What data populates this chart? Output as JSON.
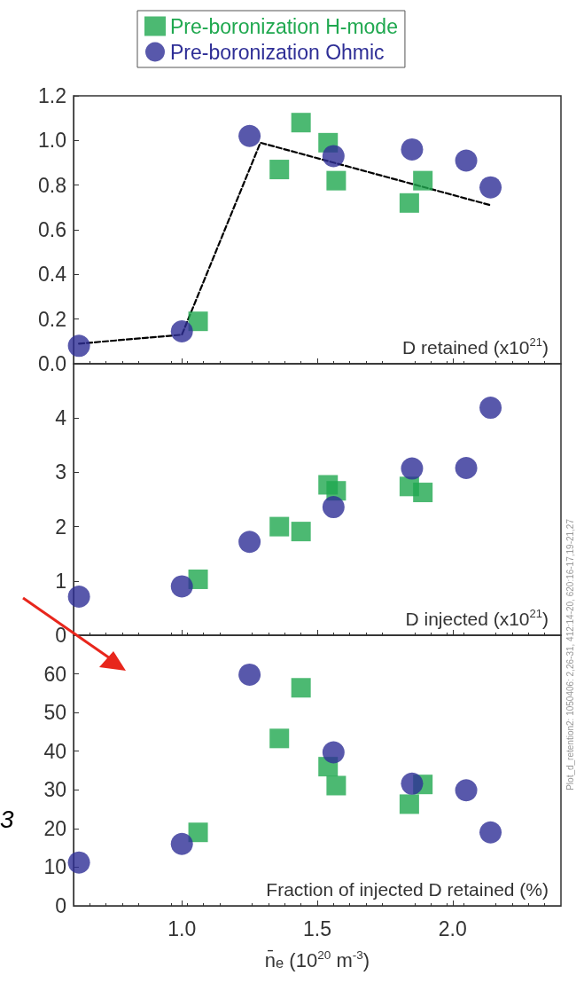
{
  "chart_data": [
    {
      "type": "scatter",
      "legend": "top",
      "tick_labels": "y",
      "grid": false,
      "annotations": [
        "D retained (x10$^{21}$)"
      ],
      "xlim": [
        0.6,
        2.4
      ],
      "xticks": [
        {
          "value": 1,
          "label": null
        },
        {
          "value": 1.5,
          "label": null
        },
        {
          "value": 2,
          "label": null
        }
      ],
      "ylim": [
        0,
        1.2
      ],
      "yticks": [
        {
          "value": 0,
          "label": "0.0"
        },
        0.2,
        0.4,
        0.6,
        0.8,
        {
          "value": 1,
          "label": "1.0"
        },
        1.2
      ],
      "series": [
        {
          "name": "Pre-boronization H-mode",
          "color": "#1fa84f",
          "marker": "square",
          "x": [
            1.06,
            1.36,
            1.44,
            1.54,
            1.57,
            1.84,
            1.89
          ],
          "values": [
            0.19,
            0.87,
            1.08,
            0.99,
            0.82,
            0.72,
            0.82
          ]
        },
        {
          "name": "Pre-boronization Ohmic",
          "color": "#2e2e96",
          "marker": "circle",
          "x": [
            0.62,
            1.0,
            1.25,
            1.56,
            1.85,
            2.05,
            2.14
          ],
          "values": [
            0.08,
            0.145,
            1.02,
            0.93,
            0.96,
            0.91,
            0.79
          ]
        },
        {
          "type": "line",
          "color": "#000000",
          "marker": "none",
          "line_style": "dashed",
          "x": [
            0.62,
            1.0,
            1.29,
            2.14
          ],
          "values": [
            0.09,
            0.13,
            0.99,
            0.71
          ]
        }
      ]
    },
    {
      "type": "scatter",
      "tick_labels": "y",
      "grid": false,
      "annotations": [
        "D injected (x10$^{21}$)"
      ],
      "xlim": [
        0.6,
        2.4
      ],
      "xticks": [
        {
          "value": 1,
          "label": null
        },
        {
          "value": 1.5,
          "label": null
        },
        {
          "value": 2,
          "label": null
        }
      ],
      "ylim": [
        0,
        5
      ],
      "yticks": [
        0,
        1,
        2,
        3,
        4
      ],
      "series": [
        {
          "color": "#1fa84f",
          "marker": "square",
          "x": [
            1.06,
            1.36,
            1.44,
            1.54,
            1.57,
            1.84,
            1.89
          ],
          "values": [
            1.03,
            2.0,
            1.91,
            2.77,
            2.66,
            2.74,
            2.63
          ]
        },
        {
          "color": "#2e2e96",
          "marker": "circle",
          "x": [
            0.62,
            1.0,
            1.25,
            1.56,
            1.85,
            2.05,
            2.14
          ],
          "values": [
            0.71,
            0.9,
            1.72,
            2.36,
            3.07,
            3.08,
            4.19
          ]
        }
      ]
    },
    {
      "type": "scatter",
      "grid": false,
      "xlabel": "n̄$_{e}$ (10$^{20}$ m$^{-3}$)",
      "annotations": [
        "Fraction of injected D retained (%)",
        "3",
        "Plot_d_retention2: 1050406: 2,26-31, 412:14-20, 620:16-17,19-21,27"
      ],
      "xlim": [
        0.6,
        2.4
      ],
      "xticks": [
        {
          "value": 1,
          "label": "1.0"
        },
        {
          "value": 1.5,
          "label": "1.5"
        },
        {
          "value": 2,
          "label": "2.0"
        }
      ],
      "ylim": [
        0,
        70
      ],
      "yticks": [
        0,
        10,
        20,
        30,
        40,
        50,
        60
      ],
      "series": [
        {
          "color": "#1fa84f",
          "marker": "square",
          "x": [
            1.06,
            1.36,
            1.44,
            1.54,
            1.57,
            1.84,
            1.89
          ],
          "values": [
            19,
            43.3,
            56.4,
            36,
            31.1,
            26.3,
            31.4
          ]
        },
        {
          "color": "#2e2e96",
          "marker": "circle",
          "x": [
            0.62,
            1.0,
            1.25,
            1.56,
            1.85,
            2.05,
            2.14
          ],
          "values": [
            11.2,
            16,
            59.8,
            39.7,
            31.6,
            29.9,
            19
          ]
        }
      ]
    }
  ]
}
